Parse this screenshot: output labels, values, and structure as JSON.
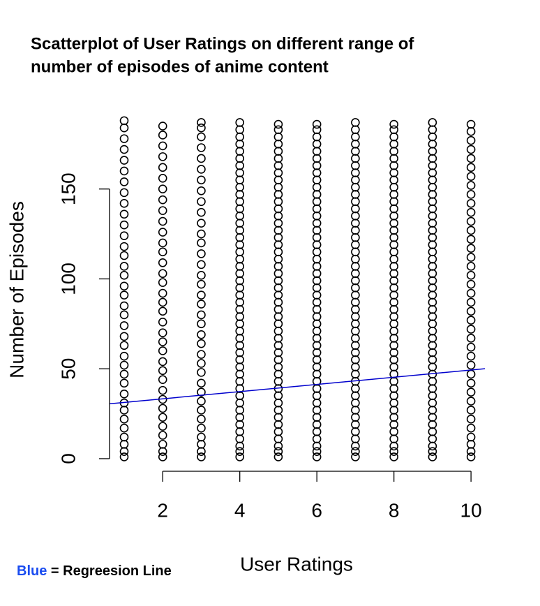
{
  "chart_data": {
    "type": "scatter",
    "title": "Scatterplot of User Ratings on different range of",
    "title_line2": "number of episodes of anime content",
    "xlabel": "User Ratings",
    "ylabel": "Number of Episodes",
    "note_color_word": "Blue",
    "note_text": "= Regreesion Line",
    "note_color": "#1a4cf0",
    "xlim": [
      0.62,
      10.36
    ],
    "ylim": [
      -7,
      193
    ],
    "xticks": [
      2,
      4,
      6,
      8,
      10
    ],
    "yticks": [
      0,
      50,
      100,
      150
    ],
    "point_color": "#000000",
    "columns": [
      {
        "x": 1,
        "y": [
          1,
          4,
          8,
          12,
          17,
          22,
          27,
          31,
          36,
          42,
          47,
          52,
          57,
          63,
          68,
          74,
          80,
          85,
          91,
          96,
          102,
          107,
          113,
          118,
          124,
          130,
          136,
          142,
          148,
          154,
          160,
          166,
          172,
          178,
          184,
          188
        ]
      },
      {
        "x": 2,
        "y": [
          1,
          4,
          8,
          13,
          18,
          23,
          28,
          33,
          38,
          44,
          49,
          54,
          60,
          65,
          70,
          76,
          82,
          87,
          92,
          98,
          103,
          109,
          115,
          120,
          126,
          132,
          138,
          144,
          150,
          156,
          162,
          168,
          174,
          180,
          185
        ]
      },
      {
        "x": 3,
        "y": [
          1,
          4,
          8,
          12,
          17,
          22,
          27,
          32,
          37,
          42,
          48,
          53,
          58,
          64,
          69,
          75,
          80,
          86,
          91,
          97,
          102,
          108,
          114,
          120,
          125,
          131,
          137,
          143,
          149,
          155,
          161,
          167,
          173,
          179,
          184,
          187
        ]
      },
      {
        "x": 4,
        "y": [
          1,
          4,
          7,
          11,
          15,
          19,
          23,
          27,
          31,
          35,
          39,
          43,
          47,
          51,
          55,
          59,
          63,
          67,
          71,
          75,
          79,
          83,
          87,
          91,
          95,
          99,
          103,
          107,
          111,
          115,
          119,
          123,
          127,
          131,
          135,
          139,
          143,
          147,
          151,
          155,
          159,
          163,
          167,
          171,
          175,
          179,
          183,
          187
        ]
      },
      {
        "x": 5,
        "y": [
          1,
          4,
          7,
          11,
          15,
          19,
          23,
          27,
          31,
          35,
          39,
          43,
          47,
          51,
          55,
          59,
          63,
          67,
          71,
          75,
          79,
          83,
          87,
          91,
          95,
          99,
          103,
          107,
          111,
          115,
          119,
          123,
          127,
          131,
          135,
          139,
          143,
          147,
          151,
          155,
          159,
          163,
          167,
          171,
          175,
          179,
          183,
          186
        ]
      },
      {
        "x": 6,
        "y": [
          1,
          4,
          7,
          11,
          15,
          19,
          23,
          27,
          31,
          35,
          39,
          43,
          47,
          51,
          55,
          59,
          63,
          67,
          71,
          75,
          79,
          83,
          87,
          91,
          95,
          99,
          103,
          107,
          111,
          115,
          119,
          123,
          127,
          131,
          135,
          139,
          143,
          147,
          151,
          155,
          159,
          163,
          167,
          171,
          175,
          179,
          183,
          186
        ]
      },
      {
        "x": 7,
        "y": [
          1,
          4,
          7,
          11,
          15,
          19,
          23,
          27,
          31,
          35,
          39,
          43,
          47,
          51,
          55,
          59,
          63,
          67,
          71,
          75,
          79,
          83,
          87,
          91,
          95,
          99,
          103,
          107,
          111,
          115,
          119,
          123,
          127,
          131,
          135,
          139,
          143,
          147,
          151,
          155,
          159,
          163,
          167,
          171,
          175,
          179,
          183,
          187
        ]
      },
      {
        "x": 8,
        "y": [
          1,
          4,
          7,
          11,
          15,
          19,
          23,
          27,
          31,
          35,
          39,
          43,
          47,
          51,
          55,
          59,
          63,
          67,
          71,
          75,
          79,
          83,
          87,
          91,
          95,
          99,
          103,
          107,
          111,
          115,
          119,
          123,
          127,
          131,
          135,
          139,
          143,
          147,
          151,
          155,
          159,
          163,
          167,
          171,
          175,
          179,
          183,
          186
        ]
      },
      {
        "x": 9,
        "y": [
          1,
          4,
          7,
          11,
          15,
          19,
          23,
          27,
          31,
          35,
          39,
          43,
          47,
          51,
          55,
          59,
          63,
          67,
          71,
          75,
          79,
          83,
          87,
          91,
          95,
          99,
          103,
          107,
          111,
          115,
          119,
          123,
          127,
          131,
          135,
          139,
          143,
          147,
          151,
          155,
          159,
          163,
          167,
          171,
          175,
          179,
          183,
          187
        ]
      },
      {
        "x": 10,
        "y": [
          1,
          4,
          8,
          12,
          17,
          22,
          27,
          32,
          37,
          42,
          47,
          52,
          57,
          62,
          67,
          72,
          77,
          82,
          87,
          92,
          97,
          102,
          107,
          112,
          117,
          122,
          127,
          132,
          137,
          142,
          147,
          152,
          157,
          162,
          167,
          172,
          177,
          182,
          186
        ]
      }
    ],
    "regression": {
      "intercept": 29.3,
      "slope": 2.0,
      "color": "#0000cd"
    }
  }
}
